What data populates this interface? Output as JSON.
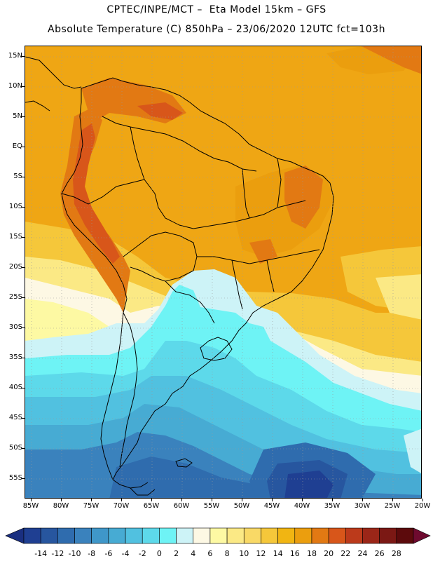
{
  "header": {
    "line1": "CPTEC/INPE/MCT –  Eta Model 15km – GFS",
    "line2": "Absolute Temperature (C) 850hPa – 23/06/2020 12UTC fct=103h"
  },
  "map": {
    "region": "South America",
    "lat_labels": [
      "15N",
      "10N",
      "5N",
      "EQ",
      "5S",
      "10S",
      "15S",
      "20S",
      "25S",
      "30S",
      "35S",
      "40S",
      "45S",
      "50S",
      "55S"
    ],
    "lon_labels": [
      "85W",
      "80W",
      "75W",
      "70W",
      "65W",
      "60W",
      "55W",
      "50W",
      "45W",
      "40W",
      "35W",
      "30W",
      "25W",
      "20W"
    ]
  },
  "colorbar": {
    "labels": [
      "-14",
      "-12",
      "-10",
      "-8",
      "-6",
      "-4",
      "-2",
      "0",
      "2",
      "4",
      "6",
      "8",
      "10",
      "12",
      "14",
      "16",
      "18",
      "20",
      "22",
      "24",
      "26",
      "28"
    ],
    "colors": [
      "#1f3f92",
      "#27569f",
      "#2f6cae",
      "#3a82bd",
      "#3f97c9",
      "#47abd3",
      "#51c1e0",
      "#5dd9ea",
      "#6ef3f5",
      "#cdf3f7",
      "#fdf8e4",
      "#fdf9a3",
      "#fbe985",
      "#f9d966",
      "#f5c73a",
      "#f1b512",
      "#eb9e0e",
      "#e27913",
      "#d8561a",
      "#bc3a1b",
      "#9b2618",
      "#7b1814",
      "#5c0a0c"
    ],
    "under_color": "#1a2f80",
    "over_color": "#6e0a2f"
  }
}
